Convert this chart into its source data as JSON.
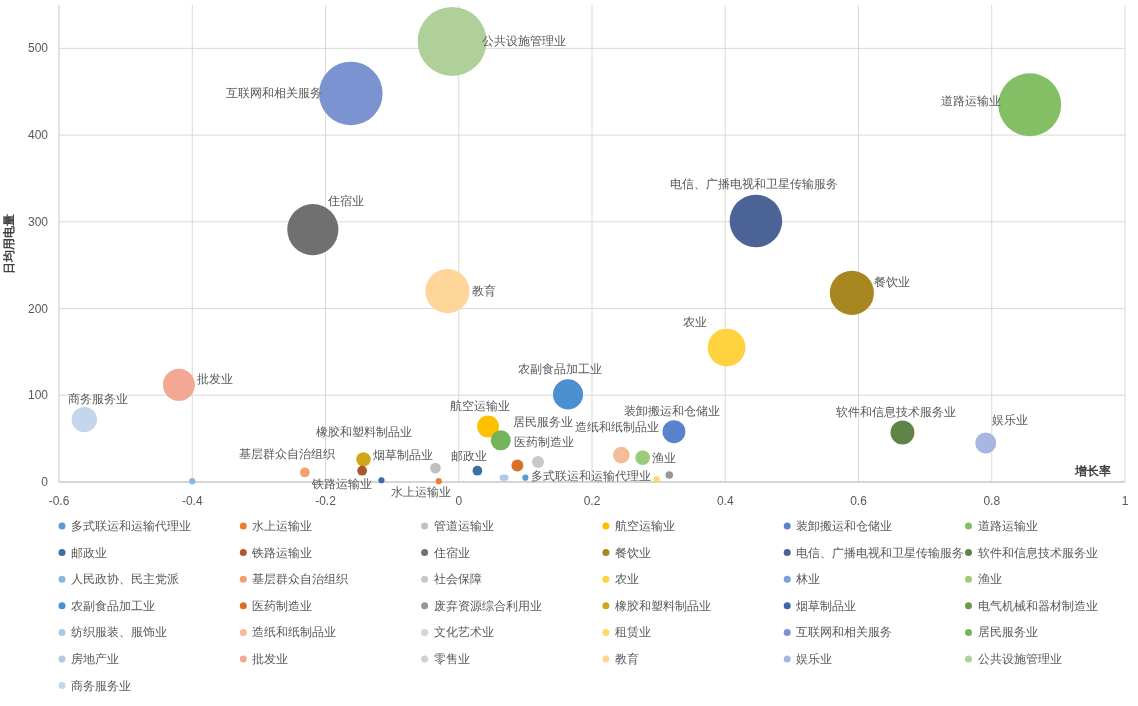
{
  "chart_data": {
    "type": "bubble",
    "xlabel": "增长率",
    "ylabel": "日均用电量",
    "xlim": [
      -0.6,
      1
    ],
    "xticks": [
      -0.6,
      -0.4,
      -0.2,
      0,
      0.2,
      0.4,
      0.6,
      0.8,
      1
    ],
    "ylim": [
      0,
      550
    ],
    "yticks": [
      0,
      100,
      200,
      300,
      400,
      500
    ],
    "grid": true,
    "legend": "bottom",
    "marker": "circle",
    "series": [
      {
        "name": "多式联运和运输代理业",
        "color": "#5b9bd5",
        "x": [
          0.1
        ],
        "values": [
          5
        ],
        "sizes": [
          0.008
        ]
      },
      {
        "name": "水上运输业",
        "color": "#ed7d31",
        "x": [
          -0.03
        ],
        "values": [
          1
        ],
        "sizes": [
          0.008
        ]
      },
      {
        "name": "管道运输业",
        "color": "#c0c0c0",
        "x": [
          -0.035
        ],
        "values": [
          16
        ],
        "sizes": [
          0.024
        ]
      },
      {
        "name": "航空运输业",
        "color": "#ffc000",
        "x": [
          0.044
        ],
        "values": [
          64
        ],
        "sizes": [
          0.1
        ]
      },
      {
        "name": "装卸搬运和仓储业",
        "color": "#5b82cf",
        "x": [
          0.323
        ],
        "values": [
          58
        ],
        "sizes": [
          0.11
        ]
      },
      {
        "name": "道路运输业",
        "color": "#84bf66",
        "x": [
          0.857
        ],
        "values": [
          435
        ],
        "sizes": [
          0.83
        ]
      },
      {
        "name": "邮政业",
        "color": "#3b6ea5",
        "x": [
          0.028
        ],
        "values": [
          13
        ],
        "sizes": [
          0.02
        ]
      },
      {
        "name": "铁路运输业",
        "color": "#a9592c",
        "x": [
          -0.145
        ],
        "values": [
          13
        ],
        "sizes": [
          0.02
        ]
      },
      {
        "name": "住宿业",
        "color": "#707070",
        "x": [
          -0.219
        ],
        "values": [
          291
        ],
        "sizes": [
          0.55
        ]
      },
      {
        "name": "餐饮业",
        "color": "#a88620",
        "x": [
          0.59
        ],
        "values": [
          218
        ],
        "sizes": [
          0.41
        ]
      },
      {
        "name": "电信、广播电视和卫星传输服务",
        "color": "#4b6396",
        "x": [
          0.446
        ],
        "values": [
          301
        ],
        "sizes": [
          0.58
        ]
      },
      {
        "name": "软件和信息技术服务业",
        "color": "#5e8448",
        "x": [
          0.666
        ],
        "values": [
          57
        ],
        "sizes": [
          0.12
        ]
      },
      {
        "name": "人民政协、民主党派",
        "color": "#87b6e0",
        "x": [
          -0.4
        ],
        "values": [
          1
        ],
        "sizes": [
          0.008
        ]
      },
      {
        "name": "基层群众自治组织",
        "color": "#f4a070",
        "x": [
          -0.231
        ],
        "values": [
          11
        ],
        "sizes": [
          0.02
        ]
      },
      {
        "name": "社会保障",
        "color": "#c8c8c8",
        "x": [
          0.119
        ],
        "values": [
          23
        ],
        "sizes": [
          0.03
        ]
      },
      {
        "name": "农业",
        "color": "#ffd23f",
        "x": [
          0.402
        ],
        "values": [
          155
        ],
        "sizes": [
          0.3
        ]
      },
      {
        "name": "林业",
        "color": "#7e9fd6",
        "x": [
          null
        ],
        "values": [
          null
        ],
        "sizes": [
          null
        ]
      },
      {
        "name": "渔业",
        "color": "#9ccb7c",
        "x": [
          0.276
        ],
        "values": [
          28
        ],
        "sizes": [
          0.045
        ]
      },
      {
        "name": "农副食品加工业",
        "color": "#4a90d0",
        "x": [
          0.164
        ],
        "values": [
          101
        ],
        "sizes": [
          0.19
        ]
      },
      {
        "name": "医药制造业",
        "color": "#d9702a",
        "x": [
          0.088
        ],
        "values": [
          19
        ],
        "sizes": [
          0.03
        ]
      },
      {
        "name": "废弃资源综合利用业",
        "color": "#969696",
        "x": [
          0.316
        ],
        "values": [
          8
        ],
        "sizes": [
          0.012
        ]
      },
      {
        "name": "橡胶和塑料制品业",
        "color": "#d1a619",
        "x": [
          -0.143
        ],
        "values": [
          26
        ],
        "sizes": [
          0.044
        ]
      },
      {
        "name": "烟草制品业",
        "color": "#3f65aa",
        "x": [
          -0.116
        ],
        "values": [
          2
        ],
        "sizes": [
          0.008
        ]
      },
      {
        "name": "电气机械和器材制造业",
        "color": "#6a9a4a",
        "x": [
          null
        ],
        "values": [
          null
        ],
        "sizes": [
          null
        ]
      },
      {
        "name": "纺织服装、服饰业",
        "color": "#a9cbea",
        "x": [
          0.066
        ],
        "values": [
          5
        ],
        "sizes": [
          0.008
        ]
      },
      {
        "name": "造纸和纸制品业",
        "color": "#f5bd97",
        "x": [
          0.244
        ],
        "values": [
          31
        ],
        "sizes": [
          0.058
        ]
      },
      {
        "name": "文化艺术业",
        "color": "#d5d5d5",
        "x": [
          null
        ],
        "values": [
          null
        ],
        "sizes": [
          null
        ]
      },
      {
        "name": "租赁业",
        "color": "#ffd966",
        "x": [
          0.297
        ],
        "values": [
          3
        ],
        "sizes": [
          0.008
        ]
      },
      {
        "name": "互联网和相关服务",
        "color": "#7b93d0",
        "x": [
          -0.162
        ],
        "values": [
          448
        ],
        "sizes": [
          0.85
        ]
      },
      {
        "name": "居民服务业",
        "color": "#74b35a",
        "x": [
          0.063
        ],
        "values": [
          48
        ],
        "sizes": [
          0.084
        ]
      },
      {
        "name": "房地产业",
        "color": "#b4c9ea",
        "x": [
          0.07
        ],
        "values": [
          5
        ],
        "sizes": [
          0.008
        ]
      },
      {
        "name": "批发业",
        "color": "#f2a895",
        "x": [
          -0.42
        ],
        "values": [
          112
        ],
        "sizes": [
          0.215
        ]
      },
      {
        "name": "零售业",
        "color": "#d0d0d0",
        "x": [
          null
        ],
        "values": [
          null
        ],
        "sizes": [
          null
        ]
      },
      {
        "name": "教育",
        "color": "#ffd699",
        "x": [
          -0.017
        ],
        "values": [
          220
        ],
        "sizes": [
          0.41
        ]
      },
      {
        "name": "娱乐业",
        "color": "#a9b6e0",
        "x": [
          0.791
        ],
        "values": [
          45
        ],
        "sizes": [
          0.093
        ]
      },
      {
        "name": "公共设施管理业",
        "color": "#b0d09a",
        "x": [
          -0.01
        ],
        "values": [
          508
        ],
        "sizes": [
          1
        ]
      },
      {
        "name": "商务服务业",
        "color": "#c4d6ec",
        "x": [
          -0.562
        ],
        "values": [
          72
        ],
        "sizes": [
          0.135
        ]
      }
    ],
    "annotations": [
      {
        "text": "公共设施管理业",
        "x": -0.01,
        "y": 508
      },
      {
        "text": "互联网和相关服务",
        "x": -0.162,
        "y": 448
      },
      {
        "text": "道路运输业",
        "x": 0.857,
        "y": 435
      },
      {
        "text": "住宿业",
        "x": -0.219,
        "y": 291
      },
      {
        "text": "电信、广播电视和卫星传输服务",
        "x": 0.446,
        "y": 301
      },
      {
        "text": "教育",
        "x": -0.017,
        "y": 220
      },
      {
        "text": "餐饮业",
        "x": 0.59,
        "y": 218
      },
      {
        "text": "农业",
        "x": 0.402,
        "y": 155
      },
      {
        "text": "农副食品加工业",
        "x": 0.164,
        "y": 101
      },
      {
        "text": "批发业",
        "x": -0.42,
        "y": 112
      },
      {
        "text": "商务服务业",
        "x": -0.562,
        "y": 72
      },
      {
        "text": "航空运输业",
        "x": 0.044,
        "y": 64
      },
      {
        "text": "装卸搬运和仓储业",
        "x": 0.323,
        "y": 58
      },
      {
        "text": "软件和信息技术服务业",
        "x": 0.666,
        "y": 57
      },
      {
        "text": "娱乐业",
        "x": 0.791,
        "y": 45
      },
      {
        "text": "橡胶和塑料制品业",
        "x": -0.143,
        "y": 26
      },
      {
        "text": "居民服务业",
        "x": 0.063,
        "y": 48
      },
      {
        "text": "造纸和纸制品业",
        "x": 0.244,
        "y": 31
      },
      {
        "text": "基层群众自治组织",
        "x": -0.231,
        "y": 11
      },
      {
        "text": "烟草制品业",
        "x": -0.116,
        "y": 2
      },
      {
        "text": "邮政业",
        "x": 0.028,
        "y": 13
      },
      {
        "text": "医药制造业",
        "x": 0.088,
        "y": 19
      },
      {
        "text": "渔业",
        "x": 0.276,
        "y": 28
      },
      {
        "text": "水上运输业",
        "x": -0.03,
        "y": 1
      },
      {
        "text": "多式联运和运输代理业",
        "x": 0.1,
        "y": 5
      },
      {
        "text": "铁路运输业",
        "x": -0.145,
        "y": 13
      }
    ]
  }
}
